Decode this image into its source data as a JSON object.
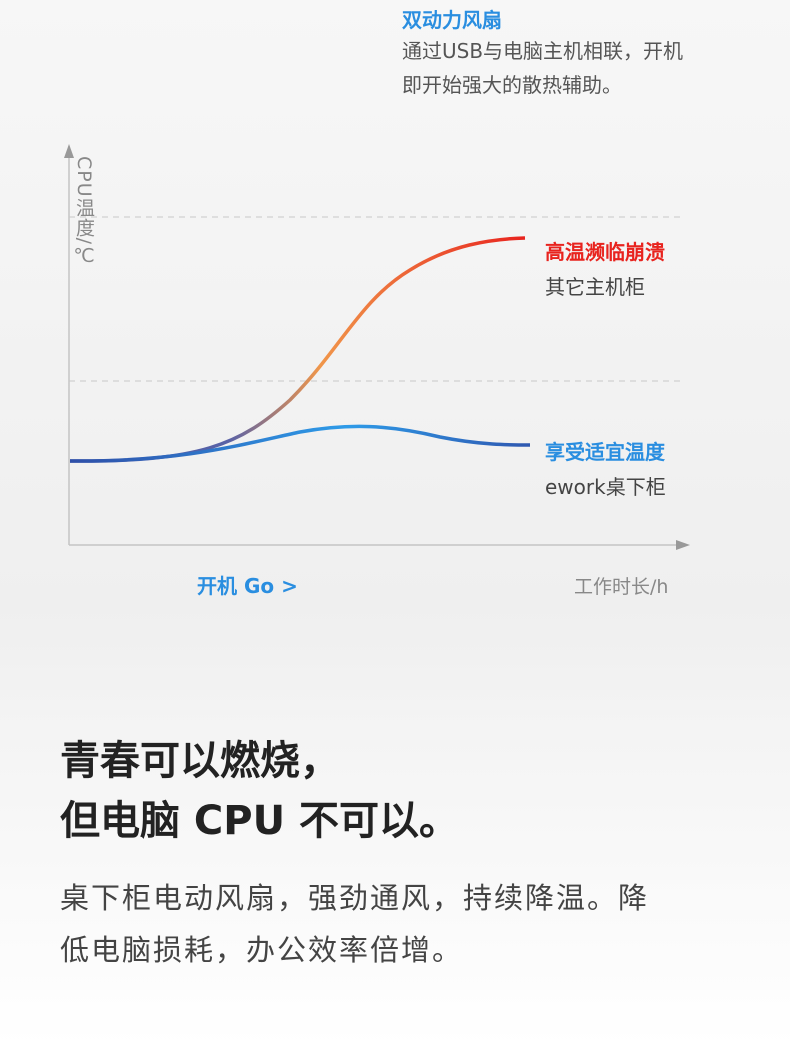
{
  "feature": {
    "title": "双动力风扇",
    "lines": [
      "通过USB与电脑主机相联，开机",
      "即开始强大的散热辅助。"
    ]
  },
  "chart": {
    "y_label": "CPU温度/℃",
    "x_label": "工作时长/h",
    "start_label": "开机 Go >",
    "high": {
      "title": "高温濒临崩溃",
      "subtitle": "其它主机柜"
    },
    "low": {
      "title": "享受适宜温度",
      "subtitle": "ework桌下柜"
    }
  },
  "headline": [
    "青春可以燃烧，",
    "但电脑 CPU 不可以。"
  ],
  "body": [
    "桌下柜电动风扇，强劲通风，持续降温。降",
    "低电脑损耗，办公效率倍增。"
  ]
}
